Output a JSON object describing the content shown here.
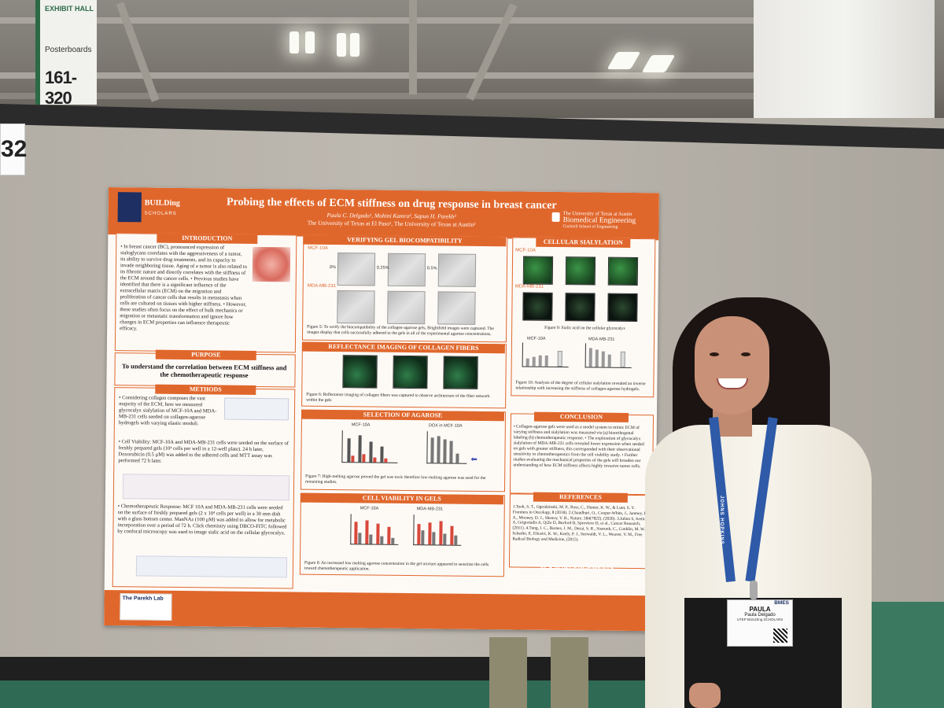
{
  "hall_sign": {
    "line1": "EXHIBIT HALL",
    "line2": "Posterboards",
    "line3": "161-320"
  },
  "board_number": "32",
  "poster": {
    "logo_text": "BUILDing",
    "logo_sub": "SCHOLARS",
    "title": "Probing the effects of ECM stiffness on drug response in breast cancer",
    "authors": "Paula C. Delgado¹, Mohini Kamra², Sapun H. Parekh²",
    "affiliations": "The University of Texas at El Paso¹, The University of Texas at Austin²",
    "institution_line1": "The University of Texas at Austin",
    "institution_line2": "Biomedical Engineering",
    "institution_line3": "Cockrell School of Engineering",
    "introduction": {
      "heading": "INTRODUCTION",
      "text": "• In breast cancer (BC), pronounced expression of sialoglycans correlates with the aggressiveness of a tumor, its ability to survive drug treatments, and its capacity to invade neighboring tissue. Aging of a tumor is also related to its fibrotic nature and directly correlates with the stiffness of the ECM around the cancer cells. • Previous studies have identified that there is a significant influence of the extracellular matrix (ECM) on the migration and proliferation of cancer cells that results in metastasis when cells are cultured on tissues with higher stiffness. • However, these studies often focus on the effect of bulk mechanics or migration or metastatic transformation and ignore how changes in ECM properties can influence therapeutic efficacy."
    },
    "purpose": {
      "heading": "PURPOSE",
      "text": "To understand the correlation between ECM stiffness and the chemotherapeutic response"
    },
    "methods": {
      "heading": "METHODS",
      "text1": "• Considering collagen composes the vast majority of the ECM, here we measured glycocalyx sialylation of MCF-10A and MDA-MB-231 cells seeded on collagen-agarose hydrogels with varying elastic moduli.",
      "text2": "• Cell Viability: MCF-10A and MDA-MB-231 cells were seeded on the surface of freshly prepared gels (10⁴ cells per well in a 12-well plate). 24 h later, Doxorubicin (0.5 µM) was added to the adhered cells and MTT assay was performed 72 h later.",
      "text3": "• Chemotherapeutic Response: MCF 10A and MDA-MB-231 cells were seeded on the surface of freshly prepared gels (2 x 10⁴ cells per well) in a 30 mm dish with a glass bottom center. ManNAz (100 µM) was added to allow for metabolic incorporation over a period of 72 h. Click chemistry using DBCO-FITC followed by confocal microscopy was used to image sialic acid on the cellular glycocalyx."
    },
    "verifying": {
      "heading": "VERIFYING GEL BIOCOMPATIBILITY",
      "row1": "MCF-10A",
      "row2": "MDA-MB-231",
      "conc": [
        "0%",
        "0.25%",
        "0.5%"
      ],
      "caption": "Figure 5: To verify the biocompatibility of the collagen-agarose gels, Brightfield images were captured. The images display that cells successfully adhered to the gels in all of the experimental agarose concentrations."
    },
    "reflectance": {
      "heading": "REFLECTANCE IMAGING OF COLLAGEN FIBERS",
      "caption": "Figure 6: Reflectance imaging of collagen fibers was captured to observe architecture of the fiber network within the gels"
    },
    "selection": {
      "heading": "SELECTION OF AGAROSE",
      "plot1": "MCF-10A",
      "plot2": "DOX in MCF-10A",
      "caption": "Figure 7: High-melting agarose proved the gel was toxic therefore low-melting agarose was used for the remaining studies."
    },
    "viability": {
      "heading": "CELL VIABILITY IN GELS",
      "plot1": "MCF-10A",
      "plot2": "MDA-MB-231",
      "caption": "Figure 8: An increased low melting agarose concentration in the gel mixture appeared to sensitize the cells toward chemotherapeutic application."
    },
    "sialylation": {
      "heading": "CELLULAR SIALYLATION",
      "row1": "MCF-10A",
      "row2": "MDA-MB-231",
      "caption9": "Figure 9: Sialic acid on the cellular glycocalyx",
      "plot1": "MCF-10A",
      "plot2": "MDA-MB-231",
      "caption10": "Figure 10: Analysis of the degree of cellular sialylation revealed an inverse relationship with increasing the stiffness of collagen-agarose hydrogels."
    },
    "conclusion": {
      "heading": "CONCLUSION",
      "text": "• Collagen-agarose gels were used as a model system to mimic ECM of varying stiffness and sialylation was measured via (a) bioorthogonal labeling (b) chemotherapeutic response. • The exploration of glycocalyx sialylation of MDA-MB-231 cells revealed lower expression when seeded on gels with greater stiffness, this corresponded with their observational sensitivity to chemotherapeutics from the cell viability study. • Further studies evaluating the mechanical properties of the gels will broaden our understanding of how ECM stiffness affects highly invasive tumor cells."
    },
    "references": {
      "heading": "REFERENCES",
      "text": "1.Teoh, S. T., Ogrodzinski, M. P., Ross, C., Hunter, K. W., & Lunt, S. Y. Frontiers in Oncology, 8 (2018). 2.Chaudhuri, O., Cooper-White, J., Janmey, P. A., Mooney, D. J., Shenoy, V. B., Nature, 584(7822), (2020). 3.Julien S, Ivetic A, Grigoriadis A, QiZe D, Burford B, Sproviero D, et al., Cancer Research, (2011). 4.Tung, J. C., Barnes, J. M., Desai, S. R., Sistrunk, C., Conklin, M. W., Schedin, P., Eliceiri, K. W., Keely, P. J., Seewaldt, V. L., Weaver, V. M., Free Radical Biology and Medicine, (2015)."
    },
    "acknowledgements": {
      "heading": "ACKNOWLEDGEMENTS",
      "text": "Research presented in this poster was supported by the National Institute of General Medical Sciences of the National Institutes of Health under linked Award Numbers RL5GM118969, TL4GM118971, and UL1GM118970. The content is solely the responsibility of the authors and does not necessarily represent the official views of the National Institutes of Health."
    },
    "lab_logo": "The Parekh Lab"
  },
  "person": {
    "lanyard_text": "JOHNS HOPKINS",
    "badge": {
      "org": "BMES",
      "first_name": "PAULA",
      "full_name": "Paula Delgado",
      "affiliation": "UTEP BUILDing SCHOLARS"
    }
  }
}
